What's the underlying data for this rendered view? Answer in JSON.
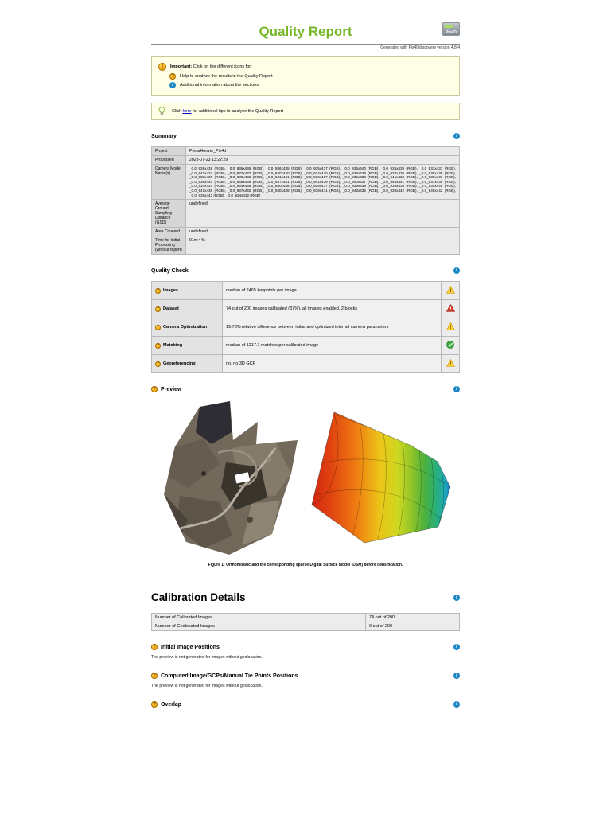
{
  "page": {
    "title": "Quality Report",
    "generated": "Generated with Pix4Ddiscovery version 4.8.4",
    "logo_text": "Pix4D"
  },
  "notices": {
    "important_label": "Important:",
    "important_text": " Click on the different icons for:",
    "help_item": "Help to analyze the results in the Quality Report",
    "info_item": "Additional information about the sections",
    "tip_pre": "Click ",
    "tip_link": "here",
    "tip_post": " for additional tips to analyze the Quality Report"
  },
  "summary": {
    "heading": "Summary",
    "rows": [
      {
        "label": "Project",
        "value": "PresaHoover_Pix4d",
        "wide": false
      },
      {
        "label": "Processed",
        "value": "2023-07-23 13:22:29",
        "wide": false
      },
      {
        "label": "Camera Model Name(s)",
        "value": "_0.0_936x438 (RGB), _0.0_936x436 (RGB), _0.0_936x435 (RGB), _0.0_935x437 (RGB), _0.0_935x440 (RGB), _0.0_935x439 (RGB), _0.0_933x437 (RGB), _0.0_941x433 (RGB), _0.0_937x437 (RGB), _0.0_940x440 (RGB), _0.0_934x440 (RGB), _0.0_938x439 (RGB), _0.0_937x436 (RGB), _0.0_939x435 (RGB), _0.0_939x439 (RGB), _0.0_939x436 (RGB), _0.0_941x441 (RGB), _0.0_936x437 (RGB), _0.0_939x438 (RGB), _0.0_941x436 (RGB), _0.0_939x437 (RGB), _0.0_938x440 (RGB), _0.0_938x438 (RGB), _0.0_937x441 (RGB), _0.0_941x439 (RGB), _0.0_940x437 (RGB), _0.0_940x441 (RGB), _0.0_937x439 (RGB), _0.0_934x437 (RGB), _0.0_934x435 (RGB), _0.0_940x438 (RGB), _0.0_938x437 (RGB), _0.0_929x439 (RGB), _0.0_933x439 (RGB), _0.0_930x440 (RGB), _0.0_941x438 (RGB), _0.0_937x440 (RGB), _0.0_940x439 (RGB), _0.0_939x441 (RGB), _0.0_943x435 (RGB), _0.0_938x442 (RGB), _0.0_940x442 (RGB), _0.0_939x443 (RGB), _0.0_924x432 (RGB)",
        "wide": true
      },
      {
        "label": "Average Ground Sampling Distance (GSD)",
        "value": "undefined",
        "wide": false
      },
      {
        "label": "Area Covered",
        "value": "undefined",
        "wide": false
      },
      {
        "label": "Time for Initial Processing (without report)",
        "value": "01m:44s",
        "wide": false
      }
    ]
  },
  "quality_check": {
    "heading": "Quality Check",
    "rows": [
      {
        "label": "Images",
        "value": "median of 2465 keypoints per image",
        "status": "warning"
      },
      {
        "label": "Dataset",
        "value": "74 out of 200 images calibrated (37%), all images enabled, 2 blocks",
        "status": "error"
      },
      {
        "label": "Camera Optimization",
        "value": "19.78% relative difference between initial and optimized internal camera parameters",
        "status": "warning"
      },
      {
        "label": "Matching",
        "value": "median of 1217.1 matches per calibrated image",
        "status": "ok"
      },
      {
        "label": "Georeferencing",
        "value": "no, no 3D GCP",
        "status": "warning"
      }
    ]
  },
  "preview": {
    "heading": "Preview",
    "caption": "Figure 1: Orthomosaic and the corresponding sparse Digital Surface Model (DSM) before densification."
  },
  "calibration": {
    "heading": "Calibration Details",
    "rows": [
      {
        "label": "Number of Calibrated Images",
        "value": "74 out of 200"
      },
      {
        "label": "Number of Geolocated Images",
        "value": "0 out of 200"
      }
    ],
    "sections": [
      {
        "heading": "Initial Image Positions",
        "note": "The preview is not generated for images without geolocation."
      },
      {
        "heading": "Computed Image/GCPs/Manual Tie Points Positions",
        "note": "The preview is not generated for images without geolocation."
      },
      {
        "heading": "Overlap",
        "note": ""
      }
    ]
  },
  "icons": {
    "info": "info-icon",
    "help": "help-icon",
    "important": "alert-icon",
    "tip": "lightbulb-icon",
    "warning": "warning-triangle-icon",
    "error": "error-triangle-icon",
    "ok": "check-circle-icon"
  },
  "colors": {
    "brand_green": "#76b829",
    "info_blue": "#1e88c7",
    "help_orange": "#f0a30a",
    "warning_yellow": "#ffd633",
    "error_red": "#e03c31",
    "ok_green": "#3fa93f",
    "link_blue": "#0000cc"
  }
}
